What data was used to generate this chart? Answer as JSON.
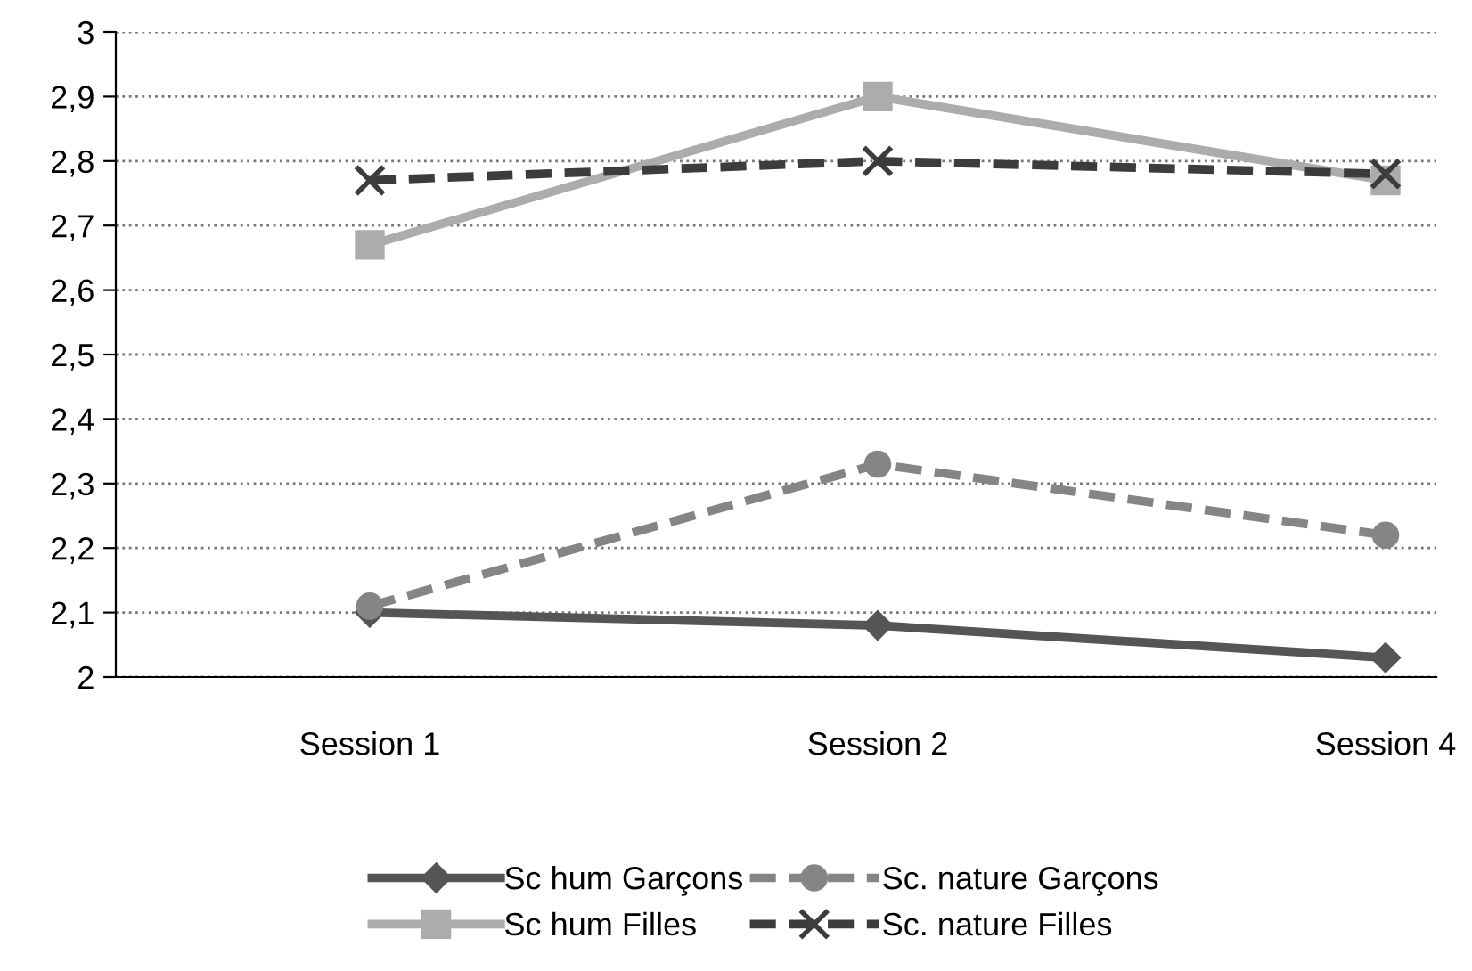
{
  "chart_data": {
    "type": "line",
    "categories": [
      "Session 1",
      "Session 2",
      "Session 4"
    ],
    "series": [
      {
        "name": "Sc hum Garçons",
        "color": "#555555",
        "values": [
          2.1,
          2.08,
          2.03
        ],
        "marker": "diamond",
        "line_style": "solid"
      },
      {
        "name": "Sc hum Filles",
        "color": "#acacac",
        "values": [
          2.67,
          2.9,
          2.77
        ],
        "marker": "square",
        "line_style": "solid"
      },
      {
        "name": "Sc. nature Garçons",
        "color": "#858585",
        "values": [
          2.11,
          2.33,
          2.22
        ],
        "marker": "circle",
        "line_style": "dashed"
      },
      {
        "name": "Sc. nature Filles",
        "color": "#3c3c3c",
        "values": [
          2.77,
          2.8,
          2.78
        ],
        "marker": "cross",
        "line_style": "dashed"
      }
    ],
    "ylim": [
      2,
      3
    ],
    "yticks": [
      {
        "value": 2,
        "label": "2"
      },
      {
        "value": 2.1,
        "label": "2,1"
      },
      {
        "value": 2.2,
        "label": "2,2"
      },
      {
        "value": 2.3,
        "label": "2,3"
      },
      {
        "value": 2.4,
        "label": "2,4"
      },
      {
        "value": 2.5,
        "label": "2,5"
      },
      {
        "value": 2.6,
        "label": "2,6"
      },
      {
        "value": 2.7,
        "label": "2,7"
      },
      {
        "value": 2.8,
        "label": "2,8"
      },
      {
        "value": 2.9,
        "label": "2,9"
      },
      {
        "value": 3,
        "label": "3"
      }
    ],
    "grid": "y",
    "legend": "bottom"
  }
}
